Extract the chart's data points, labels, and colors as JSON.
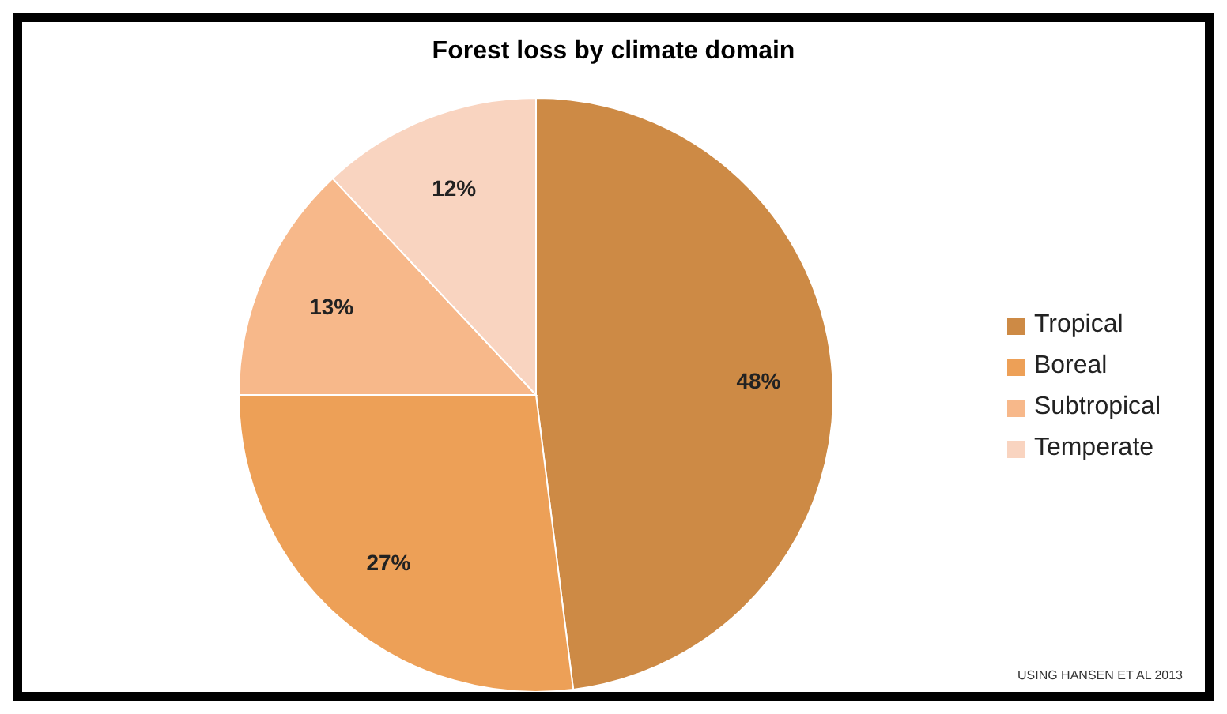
{
  "chart_data": {
    "type": "pie",
    "title": "Forest loss by climate domain",
    "categories": [
      "Tropical",
      "Boreal",
      "Subtropical",
      "Temperate"
    ],
    "values": [
      48,
      27,
      13,
      12
    ],
    "value_labels": [
      "48%",
      "27%",
      "13%",
      "12%"
    ],
    "colors": [
      "#cd8a45",
      "#eda057",
      "#f7b88a",
      "#f9d4c0"
    ],
    "legend": "right",
    "annotations": [
      "USING HANSEN ET AL 2013"
    ]
  }
}
